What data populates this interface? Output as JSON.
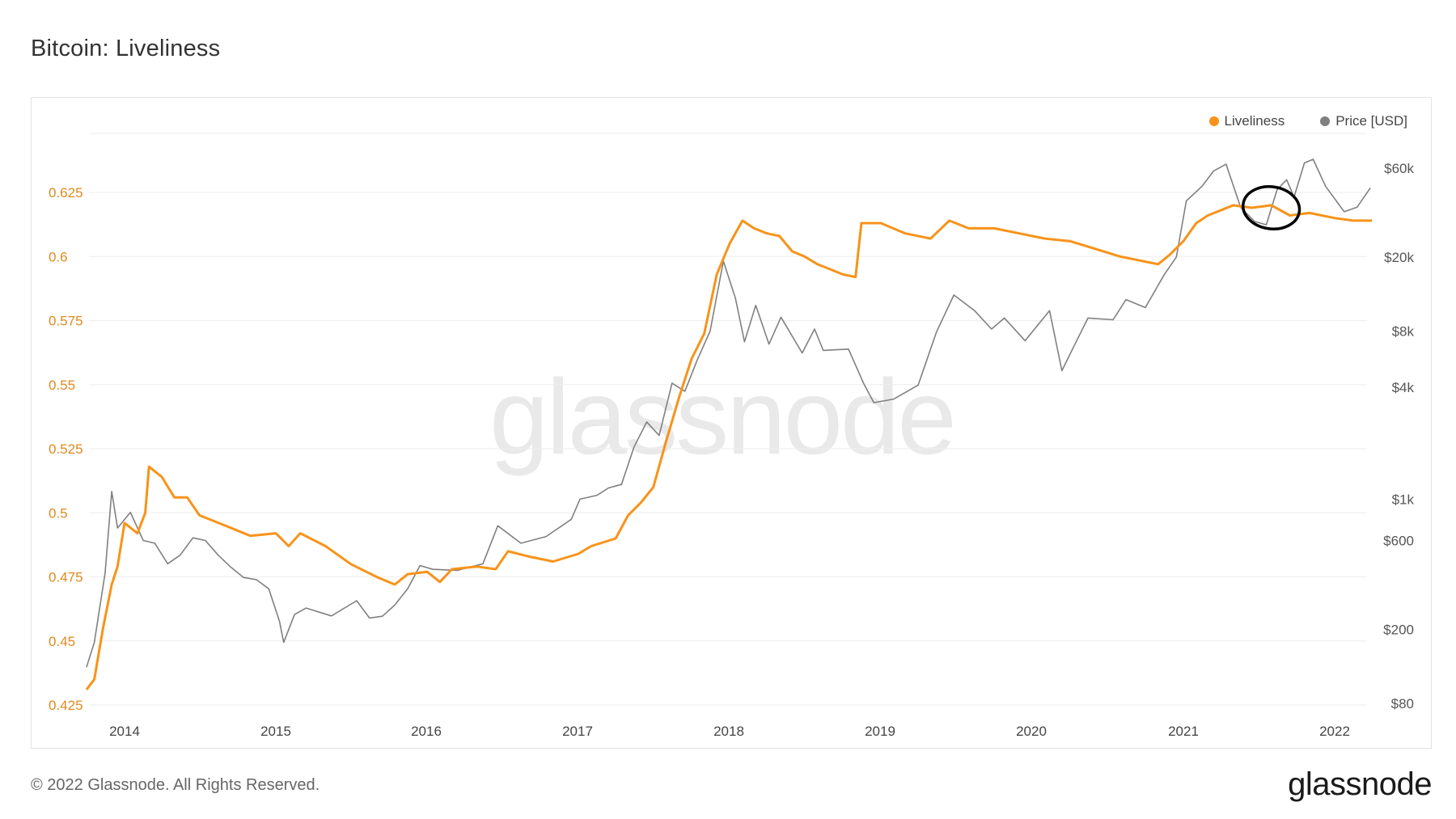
{
  "title": "Bitcoin: Liveliness",
  "legend": {
    "liveliness": "Liveliness",
    "price": "Price [USD]"
  },
  "footer": {
    "copyright": "© 2022 Glassnode. All Rights Reserved.",
    "brand": "glassnode"
  },
  "watermark": "glassnode",
  "colors": {
    "liveliness": "#f7931a",
    "price": "#808080",
    "left_axis_text": "#e08a1e",
    "right_axis_text": "#555555",
    "grid": "#eeeeee",
    "annotation": "#000000"
  },
  "chart_data": {
    "type": "line",
    "x_ticks": [
      "2014",
      "2015",
      "2016",
      "2017",
      "2018",
      "2019",
      "2020",
      "2021",
      "2022"
    ],
    "left_axis": {
      "ticks": [
        "0.625",
        "0.6",
        "0.575",
        "0.55",
        "0.525",
        "0.5",
        "0.475",
        "0.45",
        "0.425"
      ],
      "range": [
        0.425,
        0.64
      ]
    },
    "right_axis": {
      "scale": "log",
      "ticks": [
        "$60k",
        "$20k",
        "$8k",
        "$4k",
        "$1k",
        "$600",
        "$200",
        "$80"
      ],
      "tick_values": [
        60000,
        20000,
        8000,
        4000,
        1000,
        600,
        200,
        80
      ]
    },
    "grid": true,
    "legend_position": "top-right",
    "annotation": "ellipse circling mid-2021 price dip",
    "series": [
      {
        "name": "Liveliness",
        "axis": "left",
        "points": [
          [
            "2013-10-01",
            0.431
          ],
          [
            "2013-10-20",
            0.435
          ],
          [
            "2013-11-10",
            0.455
          ],
          [
            "2013-12-01",
            0.472
          ],
          [
            "2013-12-15",
            0.479
          ],
          [
            "2014-01-01",
            0.496
          ],
          [
            "2014-02-01",
            0.492
          ],
          [
            "2014-02-20",
            0.5
          ],
          [
            "2014-03-01",
            0.518
          ],
          [
            "2014-04-01",
            0.514
          ],
          [
            "2014-05-01",
            0.506
          ],
          [
            "2014-06-01",
            0.506
          ],
          [
            "2014-07-01",
            0.499
          ],
          [
            "2014-09-01",
            0.495
          ],
          [
            "2014-11-01",
            0.491
          ],
          [
            "2015-01-01",
            0.492
          ],
          [
            "2015-02-01",
            0.487
          ],
          [
            "2015-03-01",
            0.492
          ],
          [
            "2015-05-01",
            0.487
          ],
          [
            "2015-07-01",
            0.48
          ],
          [
            "2015-09-01",
            0.475
          ],
          [
            "2015-10-15",
            0.472
          ],
          [
            "2015-11-15",
            0.476
          ],
          [
            "2016-01-01",
            0.477
          ],
          [
            "2016-02-01",
            0.473
          ],
          [
            "2016-03-01",
            0.478
          ],
          [
            "2016-05-01",
            0.479
          ],
          [
            "2016-06-15",
            0.478
          ],
          [
            "2016-07-15",
            0.485
          ],
          [
            "2016-09-01",
            0.483
          ],
          [
            "2016-11-01",
            0.481
          ],
          [
            "2017-01-01",
            0.484
          ],
          [
            "2017-02-01",
            0.487
          ],
          [
            "2017-04-01",
            0.49
          ],
          [
            "2017-05-01",
            0.499
          ],
          [
            "2017-06-01",
            0.504
          ],
          [
            "2017-07-01",
            0.51
          ],
          [
            "2017-08-01",
            0.528
          ],
          [
            "2017-09-01",
            0.545
          ],
          [
            "2017-10-01",
            0.56
          ],
          [
            "2017-11-01",
            0.57
          ],
          [
            "2017-12-01",
            0.593
          ],
          [
            "2018-01-01",
            0.605
          ],
          [
            "2018-02-01",
            0.614
          ],
          [
            "2018-03-01",
            0.611
          ],
          [
            "2018-04-01",
            0.609
          ],
          [
            "2018-05-01",
            0.608
          ],
          [
            "2018-06-01",
            0.602
          ],
          [
            "2018-07-01",
            0.6
          ],
          [
            "2018-08-01",
            0.597
          ],
          [
            "2018-09-01",
            0.595
          ],
          [
            "2018-10-01",
            0.593
          ],
          [
            "2018-11-01",
            0.592
          ],
          [
            "2018-11-15",
            0.613
          ],
          [
            "2019-01-01",
            0.613
          ],
          [
            "2019-03-01",
            0.609
          ],
          [
            "2019-05-01",
            0.607
          ],
          [
            "2019-06-15",
            0.614
          ],
          [
            "2019-08-01",
            0.611
          ],
          [
            "2019-10-01",
            0.611
          ],
          [
            "2019-12-01",
            0.609
          ],
          [
            "2020-02-01",
            0.607
          ],
          [
            "2020-04-01",
            0.606
          ],
          [
            "2020-06-01",
            0.603
          ],
          [
            "2020-08-01",
            0.6
          ],
          [
            "2020-10-01",
            0.598
          ],
          [
            "2020-11-01",
            0.597
          ],
          [
            "2020-12-01",
            0.601
          ],
          [
            "2021-01-01",
            0.606
          ],
          [
            "2021-02-01",
            0.613
          ],
          [
            "2021-03-01",
            0.616
          ],
          [
            "2021-05-01",
            0.62
          ],
          [
            "2021-06-15",
            0.619
          ],
          [
            "2021-08-01",
            0.62
          ],
          [
            "2021-09-15",
            0.616
          ],
          [
            "2021-11-01",
            0.617
          ],
          [
            "2022-01-01",
            0.615
          ],
          [
            "2022-02-15",
            0.614
          ],
          [
            "2022-04-01",
            0.614
          ]
        ]
      },
      {
        "name": "Price [USD]",
        "axis": "right",
        "points": [
          [
            "2013-10-01",
            125
          ],
          [
            "2013-10-20",
            170
          ],
          [
            "2013-11-15",
            400
          ],
          [
            "2013-12-01",
            1100
          ],
          [
            "2013-12-15",
            700
          ],
          [
            "2014-01-15",
            850
          ],
          [
            "2014-02-15",
            600
          ],
          [
            "2014-03-15",
            580
          ],
          [
            "2014-04-15",
            450
          ],
          [
            "2014-05-15",
            500
          ],
          [
            "2014-06-15",
            620
          ],
          [
            "2014-07-15",
            600
          ],
          [
            "2014-08-15",
            500
          ],
          [
            "2014-09-15",
            430
          ],
          [
            "2014-10-15",
            380
          ],
          [
            "2014-11-15",
            370
          ],
          [
            "2014-12-15",
            330
          ],
          [
            "2015-01-10",
            220
          ],
          [
            "2015-01-20",
            170
          ],
          [
            "2015-02-15",
            240
          ],
          [
            "2015-03-15",
            260
          ],
          [
            "2015-05-15",
            236
          ],
          [
            "2015-07-15",
            285
          ],
          [
            "2015-08-15",
            230
          ],
          [
            "2015-09-15",
            235
          ],
          [
            "2015-10-15",
            270
          ],
          [
            "2015-11-15",
            330
          ],
          [
            "2015-12-15",
            440
          ],
          [
            "2016-01-15",
            420
          ],
          [
            "2016-03-15",
            415
          ],
          [
            "2016-05-15",
            450
          ],
          [
            "2016-06-20",
            720
          ],
          [
            "2016-08-15",
            580
          ],
          [
            "2016-10-15",
            630
          ],
          [
            "2016-12-15",
            780
          ],
          [
            "2017-01-05",
            1000
          ],
          [
            "2017-02-15",
            1050
          ],
          [
            "2017-03-15",
            1150
          ],
          [
            "2017-04-15",
            1200
          ],
          [
            "2017-05-15",
            1900
          ],
          [
            "2017-06-15",
            2600
          ],
          [
            "2017-07-15",
            2200
          ],
          [
            "2017-08-15",
            4200
          ],
          [
            "2017-09-15",
            3800
          ],
          [
            "2017-10-15",
            5600
          ],
          [
            "2017-11-15",
            8000
          ],
          [
            "2017-12-17",
            19000
          ],
          [
            "2018-01-15",
            12000
          ],
          [
            "2018-02-06",
            7000
          ],
          [
            "2018-03-05",
            11000
          ],
          [
            "2018-04-06",
            6800
          ],
          [
            "2018-05-05",
            9500
          ],
          [
            "2018-06-25",
            6100
          ],
          [
            "2018-07-25",
            8200
          ],
          [
            "2018-08-15",
            6300
          ],
          [
            "2018-10-15",
            6400
          ],
          [
            "2018-11-20",
            4200
          ],
          [
            "2018-12-15",
            3300
          ],
          [
            "2019-02-01",
            3450
          ],
          [
            "2019-04-01",
            4100
          ],
          [
            "2019-05-15",
            7900
          ],
          [
            "2019-06-26",
            12500
          ],
          [
            "2019-08-15",
            10300
          ],
          [
            "2019-09-25",
            8200
          ],
          [
            "2019-10-26",
            9400
          ],
          [
            "2019-12-15",
            7100
          ],
          [
            "2020-02-12",
            10300
          ],
          [
            "2020-03-13",
            4900
          ],
          [
            "2020-04-15",
            6900
          ],
          [
            "2020-05-15",
            9400
          ],
          [
            "2020-07-15",
            9200
          ],
          [
            "2020-08-15",
            11800
          ],
          [
            "2020-10-01",
            10700
          ],
          [
            "2020-11-15",
            16000
          ],
          [
            "2020-12-15",
            20000
          ],
          [
            "2021-01-08",
            40000
          ],
          [
            "2021-02-15",
            48000
          ],
          [
            "2021-03-15",
            58000
          ],
          [
            "2021-04-14",
            63000
          ],
          [
            "2021-05-19",
            37000
          ],
          [
            "2021-06-22",
            31000
          ],
          [
            "2021-07-20",
            29800
          ],
          [
            "2021-08-15",
            46000
          ],
          [
            "2021-09-07",
            52000
          ],
          [
            "2021-09-25",
            42000
          ],
          [
            "2021-10-20",
            64000
          ],
          [
            "2021-11-10",
            67000
          ],
          [
            "2021-12-10",
            48000
          ],
          [
            "2022-01-24",
            35000
          ],
          [
            "2022-02-24",
            37000
          ],
          [
            "2022-03-28",
            47000
          ]
        ]
      }
    ]
  }
}
